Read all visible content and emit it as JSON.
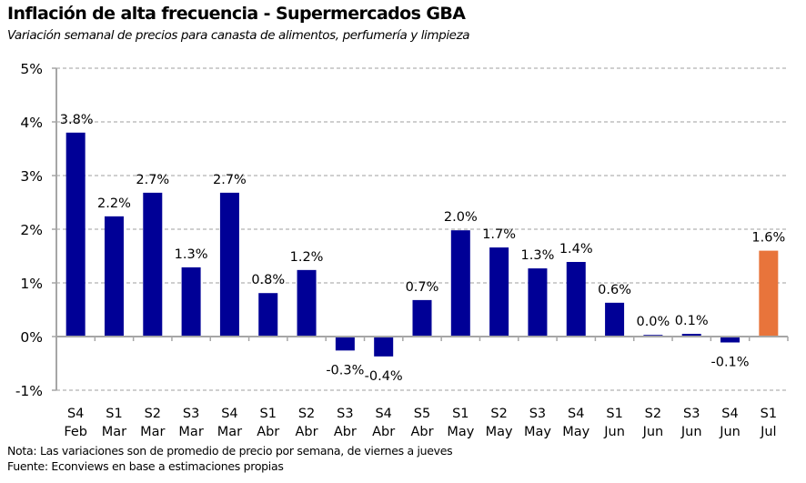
{
  "chart_data": {
    "type": "bar",
    "title": "Inflación de alta frecuencia - Supermercados GBA",
    "subtitle": "Variación semanal de precios para canasta de alimentos, perfumería y limpieza",
    "xlabel": "",
    "ylabel": "",
    "ylim": [
      -1,
      5
    ],
    "yticks": [
      -1,
      0,
      1,
      2,
      3,
      4,
      5
    ],
    "ytick_labels": [
      "-1%",
      "0%",
      "1%",
      "2%",
      "3%",
      "4%",
      "5%"
    ],
    "grid": true,
    "legend": "none",
    "categories": [
      [
        "S4",
        "Feb"
      ],
      [
        "S1",
        "Mar"
      ],
      [
        "S2",
        "Mar"
      ],
      [
        "S3",
        "Mar"
      ],
      [
        "S4",
        "Mar"
      ],
      [
        "S1",
        "Abr"
      ],
      [
        "S2",
        "Abr"
      ],
      [
        "S3",
        "Abr"
      ],
      [
        "S4",
        "Abr"
      ],
      [
        "S5",
        "Abr"
      ],
      [
        "S1",
        "May"
      ],
      [
        "S2",
        "May"
      ],
      [
        "S3",
        "May"
      ],
      [
        "S4",
        "May"
      ],
      [
        "S1",
        "Jun"
      ],
      [
        "S2",
        "Jun"
      ],
      [
        "S3",
        "Jun"
      ],
      [
        "S4",
        "Jun"
      ],
      [
        "S1",
        "Jul"
      ]
    ],
    "values": [
      3.8,
      2.24,
      2.68,
      1.29,
      2.68,
      0.81,
      1.24,
      -0.26,
      -0.37,
      0.68,
      1.98,
      1.66,
      1.27,
      1.39,
      0.63,
      0.03,
      0.05,
      -0.11,
      1.6
    ],
    "data_labels": [
      "3.8%",
      "2.2%",
      "2.7%",
      "1.3%",
      "2.7%",
      "0.8%",
      "1.2%",
      "-0.3%",
      "-0.4%",
      "0.7%",
      "2.0%",
      "1.7%",
      "1.3%",
      "1.4%",
      "0.6%",
      "0.0%",
      "0.1%",
      "-0.1%",
      "1.6%"
    ],
    "colors": {
      "default_bar": "#000096",
      "highlight_bar": "#E8743B",
      "grid": "#BFBFBF",
      "axis": "#A6A6A6"
    },
    "highlight_index": 18
  },
  "notes": {
    "nota": "Nota: Las variaciones son de promedio de precio por semana, de viernes a jueves",
    "fuente": "Fuente: Econviews en base a estimaciones propias"
  }
}
